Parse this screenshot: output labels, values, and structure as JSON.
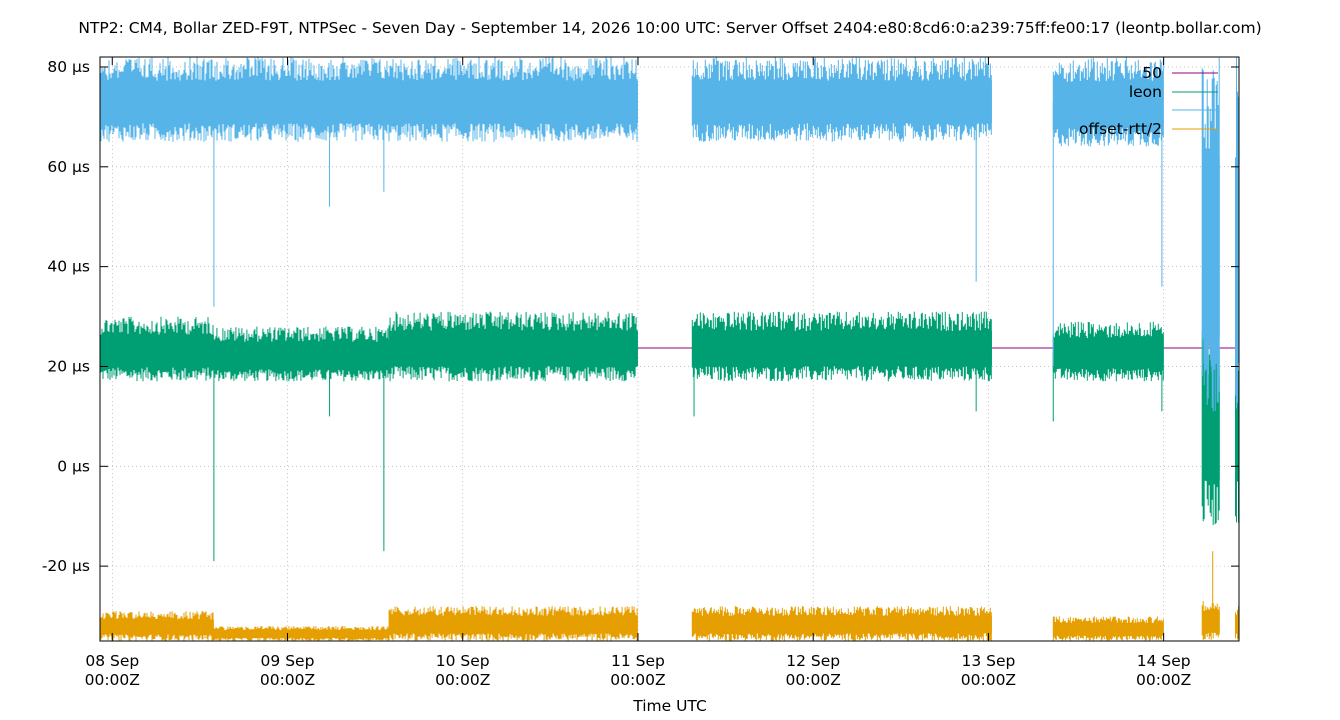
{
  "chart_data": {
    "type": "line",
    "title": "NTP2: CM4, Bollar ZED-F9T, NTPSec - Seven Day - September 14, 2026 10:00 UTC: Server Offset 2404:e80:8cd6:0:a239:75ff:fe00:17 (leontp.bollar.com)",
    "xlabel": "Time UTC",
    "ylabel": "",
    "x_unit": "days since 08 Sep 00:00Z",
    "xlim": [
      -0.07,
      6.43
    ],
    "ylim": [
      -35,
      82
    ],
    "grid": true,
    "legend_position": "top-right",
    "yticks": [
      {
        "value": 80,
        "label": "80 µs"
      },
      {
        "value": 60,
        "label": "60 µs"
      },
      {
        "value": 40,
        "label": "40 µs"
      },
      {
        "value": 20,
        "label": "20 µs"
      },
      {
        "value": 0,
        "label": "0 µs"
      },
      {
        "value": -20,
        "label": "-20 µs"
      }
    ],
    "xticks": [
      {
        "value": 0,
        "line1": "08 Sep",
        "line2": "00:00Z"
      },
      {
        "value": 1,
        "line1": "09 Sep",
        "line2": "00:00Z"
      },
      {
        "value": 2,
        "line1": "10 Sep",
        "line2": "00:00Z"
      },
      {
        "value": 3,
        "line1": "11 Sep",
        "line2": "00:00Z"
      },
      {
        "value": 4,
        "line1": "12 Sep",
        "line2": "00:00Z"
      },
      {
        "value": 5,
        "line1": "13 Sep",
        "line2": "00:00Z"
      },
      {
        "value": 6,
        "line1": "14 Sep",
        "line2": "00:00Z"
      }
    ],
    "segments": [
      [
        -0.07,
        3.0
      ],
      [
        3.31,
        5.02
      ],
      [
        5.37,
        6.0
      ],
      [
        6.22,
        6.32
      ],
      [
        6.41,
        6.43
      ]
    ],
    "series": [
      {
        "name": "50",
        "color": "#94007f",
        "kind": "constant",
        "value": 23.7
      },
      {
        "name": "leon",
        "color": "#009e73",
        "kind": "band",
        "bands": [
          {
            "x0": -0.07,
            "x1": 0.58,
            "low": 17,
            "high": 30
          },
          {
            "x0": 0.58,
            "x1": 1.58,
            "low": 17,
            "high": 28
          },
          {
            "x0": 1.58,
            "x1": 3.0,
            "low": 17,
            "high": 31
          },
          {
            "x0": 3.31,
            "x1": 5.02,
            "low": 17,
            "high": 31
          },
          {
            "x0": 5.37,
            "x1": 6.0,
            "low": 17,
            "high": 29
          },
          {
            "x0": 6.22,
            "x1": 6.32,
            "low": -12,
            "high": 30
          },
          {
            "x0": 6.41,
            "x1": 6.43,
            "low": -12,
            "high": 29
          }
        ],
        "spikes": [
          {
            "x": 0.58,
            "y": -19
          },
          {
            "x": 1.24,
            "y": 10
          },
          {
            "x": 1.55,
            "y": -17
          },
          {
            "x": 3.32,
            "y": 10
          },
          {
            "x": 5.37,
            "y": 9
          },
          {
            "x": 4.93,
            "y": 11
          },
          {
            "x": 5.99,
            "y": 11
          }
        ]
      },
      {
        "name": "",
        "color": "#56b4e9",
        "kind": "band",
        "bands": [
          {
            "x0": -0.07,
            "x1": 3.0,
            "low": 65,
            "high": 82
          },
          {
            "x0": 3.31,
            "x1": 5.02,
            "low": 65,
            "high": 82
          },
          {
            "x0": 5.37,
            "x1": 6.0,
            "low": 64,
            "high": 82
          },
          {
            "x0": 6.22,
            "x1": 6.32,
            "low": 10,
            "high": 82
          },
          {
            "x0": 6.41,
            "x1": 6.43,
            "low": 10,
            "high": 82
          }
        ],
        "spikes": [
          {
            "x": 0.58,
            "y": 32
          },
          {
            "x": 1.24,
            "y": 52
          },
          {
            "x": 1.55,
            "y": 55
          },
          {
            "x": 4.93,
            "y": 37
          },
          {
            "x": 5.37,
            "y": 20
          },
          {
            "x": 5.99,
            "y": 36
          }
        ]
      },
      {
        "name": "offset-rtt/2",
        "color": "#e69f00",
        "kind": "band",
        "bands": [
          {
            "x0": -0.07,
            "x1": 0.58,
            "low": -35,
            "high": -29
          },
          {
            "x0": 0.58,
            "x1": 1.58,
            "low": -35,
            "high": -32
          },
          {
            "x0": 1.58,
            "x1": 3.0,
            "low": -35,
            "high": -28
          },
          {
            "x0": 3.31,
            "x1": 5.02,
            "low": -35,
            "high": -28
          },
          {
            "x0": 5.37,
            "x1": 6.0,
            "low": -35,
            "high": -30
          },
          {
            "x0": 6.22,
            "x1": 6.32,
            "low": -35,
            "high": -27
          },
          {
            "x0": 6.41,
            "x1": 6.43,
            "low": -35,
            "high": -28
          }
        ],
        "spikes": [
          {
            "x": 6.28,
            "y": -17
          }
        ]
      }
    ]
  }
}
